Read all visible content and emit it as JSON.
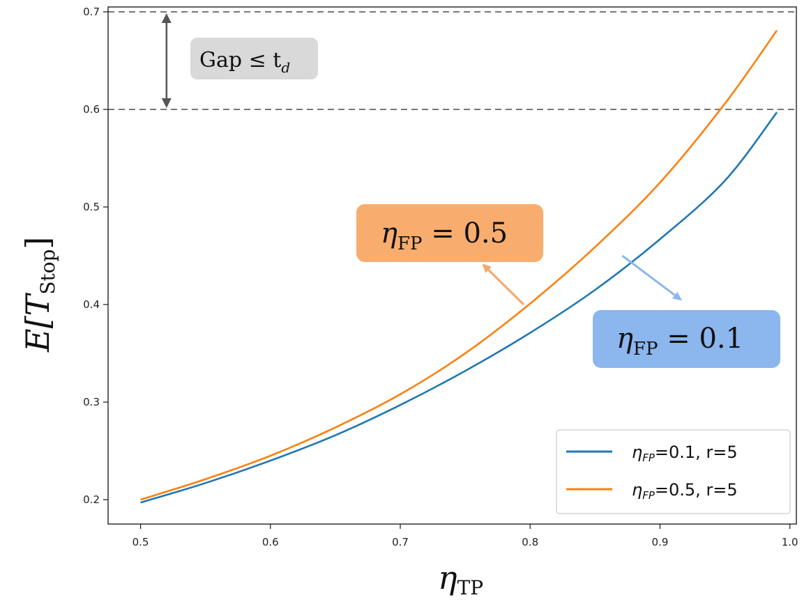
{
  "chart_data": {
    "type": "line",
    "xlim": [
      0.475,
      1.005
    ],
    "ylim": [
      0.175,
      0.705
    ],
    "xticks": [
      "0.5",
      "0.6",
      "0.7",
      "0.8",
      "0.9",
      "1.0"
    ],
    "yticks": [
      "0.2",
      "0.3",
      "0.4",
      "0.5",
      "0.6",
      "0.7"
    ],
    "xlabel_main": "η",
    "xlabel_sub": "TP",
    "ylabel_main": "E[T",
    "ylabel_sub": "Stop",
    "ylabel_end": "]",
    "grid": false,
    "series": [
      {
        "name": "ηFP=0.1, r=5",
        "legend_label_prefix": "η",
        "legend_label_sub": "FP",
        "legend_label_rest": "=0.1, r=5",
        "color": "#1f77b4",
        "x": [
          0.5,
          0.55,
          0.6,
          0.65,
          0.7,
          0.75,
          0.8,
          0.85,
          0.9,
          0.95,
          0.99
        ],
        "y": [
          0.197,
          0.217,
          0.24,
          0.266,
          0.297,
          0.332,
          0.371,
          0.415,
          0.467,
          0.527,
          0.597
        ]
      },
      {
        "name": "ηFP=0.5, r=5",
        "legend_label_prefix": "η",
        "legend_label_sub": "FP",
        "legend_label_rest": "=0.5, r=5",
        "color": "#ff7f0e",
        "x": [
          0.5,
          0.55,
          0.6,
          0.65,
          0.7,
          0.75,
          0.8,
          0.85,
          0.9,
          0.95,
          0.99
        ],
        "y": [
          0.2,
          0.221,
          0.245,
          0.274,
          0.308,
          0.35,
          0.401,
          0.459,
          0.525,
          0.606,
          0.681
        ]
      }
    ],
    "reference_lines": [
      {
        "y": 0.7,
        "color": "#777777",
        "style": "dashed"
      },
      {
        "y": 0.6,
        "color": "#777777",
        "style": "dashed"
      }
    ],
    "gap_annotation": {
      "text_main": "Gap ≤ t",
      "text_sub": "d",
      "x": 0.52,
      "y_top": 0.7,
      "y_bottom": 0.6,
      "box_color": "#d9d9d9"
    },
    "callouts": [
      {
        "label_main": "η",
        "label_sub": "FP",
        "label_rest": " = 0.5",
        "box_color": "#f8ad6e",
        "arrow_color": "#f6a56a",
        "arrow_from": [
          0.795,
          0.4
        ],
        "arrow_to": [
          0.763,
          0.442
        ]
      },
      {
        "label_main": "η",
        "label_sub": "FP",
        "label_rest": " = 0.1",
        "box_color": "#8bb6ee",
        "arrow_color": "#8bb6ee",
        "arrow_from": [
          0.871,
          0.45
        ],
        "arrow_to": [
          0.917,
          0.404
        ]
      }
    ],
    "legend_position": "lower-right"
  }
}
